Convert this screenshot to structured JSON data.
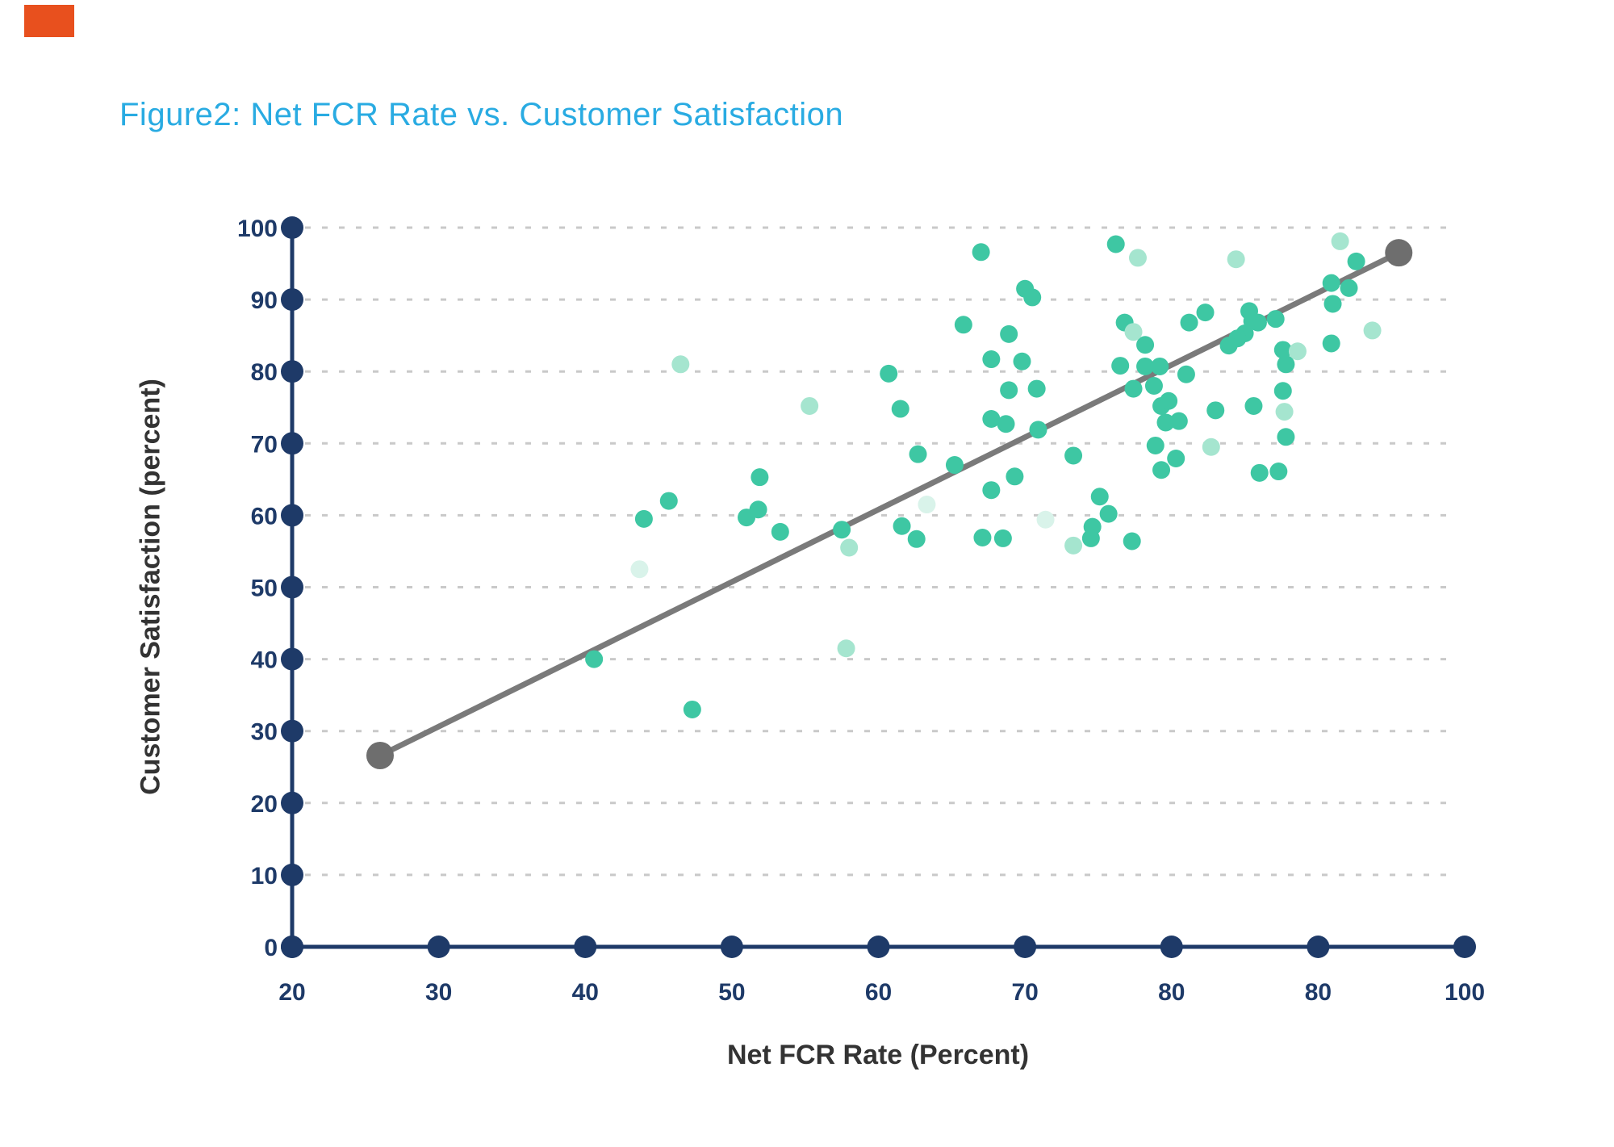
{
  "ui": {
    "corner_mark_color": "#E8501E",
    "background_color": "#FFFFFF"
  },
  "title": {
    "text": "Figure2: Net FCR Rate vs. Customer Satisfaction",
    "color": "#29ABE2"
  },
  "chart_data": {
    "type": "scatter",
    "title": "Figure2: Net FCR Rate vs. Customer Satisfaction",
    "xlabel": "Net FCR Rate (Percent)",
    "ylabel": "Customer Satisfaction (percent)",
    "x_tick_labels": [
      "20",
      "30",
      "40",
      "50",
      "60",
      "70",
      "80",
      "80",
      "100"
    ],
    "y_tick_labels": [
      "0",
      "10",
      "20",
      "30",
      "40",
      "50",
      "60",
      "70",
      "80",
      "90",
      "100"
    ],
    "x_range": [
      20,
      100
    ],
    "y_range": [
      0,
      100
    ],
    "grid": "horizontal-dashed",
    "colors": {
      "axis_navy": "#1E3A68",
      "grid_gray": "#C9C9C9",
      "trend_gray": "#7A7A7A",
      "trend_endpoint_gray": "#6E6E6E",
      "point_medium": "#3EC7A3",
      "point_light": "#A5E5CF",
      "point_faint": "#D9F3EA"
    },
    "series": [
      {
        "name": "observations",
        "shade": "medium",
        "points": [
          [
            40.6,
            40
          ],
          [
            47.3,
            33
          ],
          [
            44,
            59.5
          ],
          [
            45.7,
            62
          ],
          [
            51.9,
            65.3
          ],
          [
            51,
            59.7
          ],
          [
            51.8,
            60.8
          ],
          [
            53.3,
            57.7
          ],
          [
            57.5,
            58
          ],
          [
            60.7,
            79.7
          ],
          [
            61.5,
            74.8
          ],
          [
            61.6,
            58.5
          ],
          [
            62.6,
            56.7
          ],
          [
            62.7,
            68.5
          ],
          [
            65.2,
            67
          ],
          [
            65.8,
            86.5
          ],
          [
            67,
            96.6
          ],
          [
            67.7,
            81.7
          ],
          [
            68.9,
            85.2
          ],
          [
            69.8,
            81.4
          ],
          [
            68.9,
            77.4
          ],
          [
            70.8,
            77.6
          ],
          [
            67.7,
            73.4
          ],
          [
            68.7,
            72.7
          ],
          [
            70.9,
            71.9
          ],
          [
            70,
            91.5
          ],
          [
            70.5,
            90.3
          ],
          [
            67.1,
            56.9
          ],
          [
            68.5,
            56.8
          ],
          [
            67.7,
            63.5
          ],
          [
            69.3,
            65.4
          ],
          [
            73.3,
            68.3
          ],
          [
            74.6,
            58.4
          ],
          [
            74.5,
            56.8
          ],
          [
            75.1,
            62.6
          ],
          [
            75.7,
            60.2
          ],
          [
            77.3,
            56.4
          ],
          [
            76.2,
            97.7
          ],
          [
            76.8,
            86.8
          ],
          [
            78.2,
            83.7
          ],
          [
            76.5,
            80.8
          ],
          [
            78.2,
            80.7
          ],
          [
            79.2,
            80.7
          ],
          [
            78.8,
            78
          ],
          [
            77.4,
            77.6
          ],
          [
            79.3,
            75.2
          ],
          [
            79.8,
            75.9
          ],
          [
            79.6,
            72.9
          ],
          [
            80.5,
            73.1
          ],
          [
            78.9,
            69.7
          ],
          [
            80.3,
            67.9
          ],
          [
            79.3,
            66.3
          ],
          [
            81,
            79.6
          ],
          [
            81.2,
            86.8
          ],
          [
            82.3,
            88.2
          ],
          [
            85.3,
            88.4
          ],
          [
            85.5,
            87
          ],
          [
            85.9,
            86.8
          ],
          [
            87.1,
            87.3
          ],
          [
            85,
            85.3
          ],
          [
            84.5,
            84.6
          ],
          [
            83.9,
            83.6
          ],
          [
            87.8,
            81
          ],
          [
            83,
            74.6
          ],
          [
            85.6,
            75.2
          ],
          [
            86,
            65.9
          ],
          [
            87.3,
            66.1
          ],
          [
            87.6,
            83
          ],
          [
            87.6,
            77.3
          ],
          [
            87.8,
            70.9
          ],
          [
            90.9,
            92.3
          ],
          [
            92.1,
            91.6
          ],
          [
            91,
            89.4
          ],
          [
            92.6,
            95.3
          ],
          [
            90.9,
            83.9
          ]
        ]
      },
      {
        "name": "observations-light",
        "shade": "light",
        "points": [
          [
            46.5,
            81
          ],
          [
            55.3,
            75.2
          ],
          [
            58,
            55.5
          ],
          [
            57.8,
            41.5
          ],
          [
            73.3,
            55.8
          ],
          [
            77.7,
            95.8
          ],
          [
            77.4,
            85.5
          ],
          [
            82.7,
            69.5
          ],
          [
            84.4,
            95.6
          ],
          [
            88.6,
            82.8
          ],
          [
            87.7,
            74.4
          ],
          [
            91.5,
            98.1
          ],
          [
            93.7,
            85.7
          ]
        ]
      },
      {
        "name": "observations-faint",
        "shade": "faint",
        "points": [
          [
            43.7,
            52.5
          ],
          [
            63.3,
            61.5
          ],
          [
            71.4,
            59.4
          ]
        ]
      }
    ],
    "trendline": {
      "x1": 26,
      "y1": 26.6,
      "x2": 95.5,
      "y2": 96.5
    }
  }
}
